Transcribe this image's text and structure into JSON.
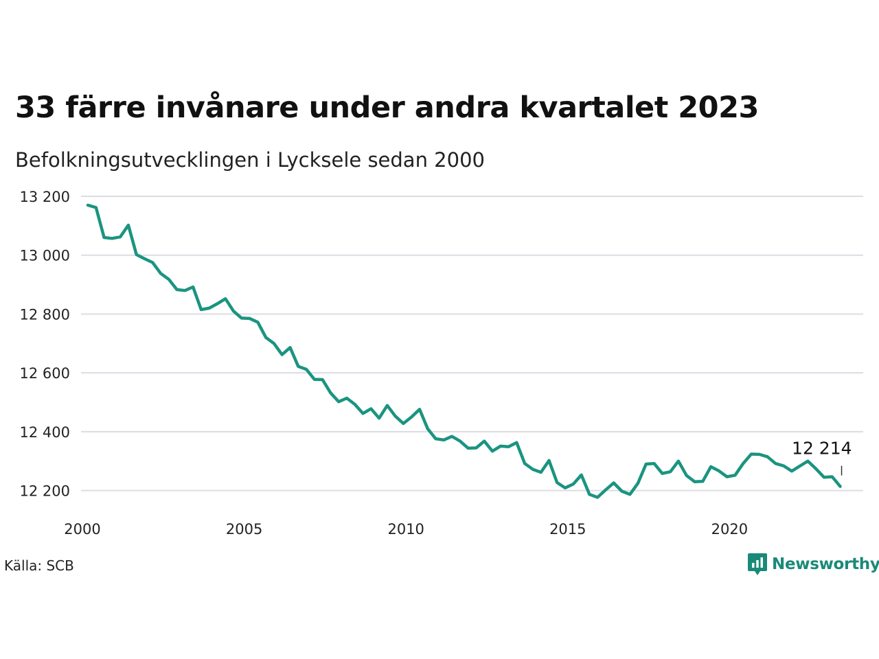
{
  "header": {
    "title": "33 färre invånare under andra kvartalet 2023",
    "subtitle": "Befolkningsutvecklingen i Lycksele sedan 2000"
  },
  "footer": {
    "source": "Källa: SCB",
    "brand": "Newsworthy",
    "brand_icon": "newsworthy-logo-icon"
  },
  "colors": {
    "line": "#1a9480",
    "grid": "#dcdce4",
    "text": "#222222",
    "brand": "#1a8a78"
  },
  "chart_data": {
    "type": "line",
    "title": "33 färre invånare under andra kvartalet 2023",
    "subtitle": "Befolkningsutvecklingen i Lycksele sedan 2000",
    "xlabel": "",
    "ylabel": "",
    "x_ticks": [
      "2000",
      "2005",
      "2010",
      "2015",
      "2020"
    ],
    "y_ticks": [
      "12 200",
      "12 400",
      "12 600",
      "12 800",
      "13 000",
      "13 200"
    ],
    "y_tick_values": [
      12200,
      12400,
      12600,
      12800,
      13000,
      13200
    ],
    "xlim": [
      2000,
      2024.5
    ],
    "ylim": [
      12130,
      13200
    ],
    "grid": true,
    "end_label": "12 214",
    "series": [
      {
        "x": [
          2000.0,
          2000.25,
          2000.5,
          2000.75,
          2001.0,
          2001.25,
          2001.5,
          2001.75,
          2002.0,
          2002.25,
          2002.5,
          2002.75,
          2003.0,
          2003.25,
          2003.5,
          2003.75,
          2004.0,
          2004.25,
          2004.5,
          2004.75,
          2005.0,
          2005.25,
          2005.5,
          2005.75,
          2006.0,
          2006.25,
          2006.5,
          2006.75,
          2007.0,
          2007.25,
          2007.5,
          2007.75,
          2008.0,
          2008.25,
          2008.5,
          2008.75,
          2009.0,
          2009.25,
          2009.5,
          2009.75,
          2010.0,
          2010.25,
          2010.5,
          2010.75,
          2011.0,
          2011.25,
          2011.5,
          2011.75,
          2012.0,
          2012.25,
          2012.5,
          2012.75,
          2013.0,
          2013.25,
          2013.5,
          2013.75,
          2014.0,
          2014.25,
          2014.5,
          2014.75,
          2015.0,
          2015.25,
          2015.5,
          2015.75,
          2016.0,
          2016.25,
          2016.5,
          2016.75,
          2017.0,
          2017.25,
          2017.5,
          2017.75,
          2018.0,
          2018.25,
          2018.5,
          2018.75,
          2019.0,
          2019.25,
          2019.5,
          2019.75,
          2020.0,
          2020.25,
          2020.5,
          2020.75,
          2021.0,
          2021.25,
          2021.5,
          2021.75,
          2022.0,
          2022.25,
          2022.5,
          2022.75,
          2023.0,
          2023.25
        ],
        "values": [
          13170,
          13162,
          13060,
          13057,
          13062,
          13102,
          13002,
          12988,
          12975,
          12938,
          12918,
          12883,
          12880,
          12892,
          12815,
          12820,
          12835,
          12852,
          12810,
          12786,
          12785,
          12772,
          12720,
          12700,
          12662,
          12686,
          12622,
          12612,
          12578,
          12577,
          12532,
          12502,
          12514,
          12493,
          12462,
          12478,
          12446,
          12489,
          12453,
          12428,
          12450,
          12476,
          12410,
          12376,
          12372,
          12384,
          12368,
          12344,
          12345,
          12368,
          12334,
          12351,
          12349,
          12363,
          12292,
          12272,
          12262,
          12302,
          12227,
          12209,
          12222,
          12253,
          12187,
          12177,
          12202,
          12226,
          12198,
          12187,
          12225,
          12290,
          12292,
          12258,
          12264,
          12300,
          12251,
          12230,
          12231,
          12281,
          12267,
          12247,
          12252,
          12292,
          12324,
          12323,
          12315,
          12292,
          12284,
          12266,
          12283,
          12300,
          12274,
          12245,
          12247,
          12214
        ]
      }
    ]
  }
}
